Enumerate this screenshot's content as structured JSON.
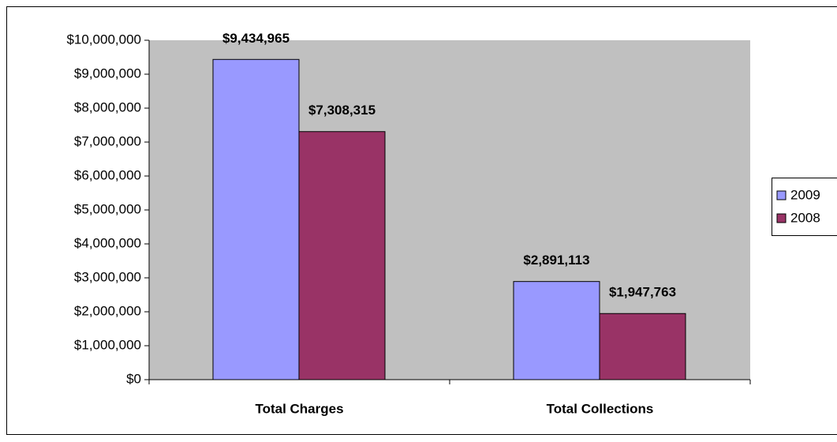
{
  "chart_data": {
    "type": "bar",
    "categories": [
      "Total Charges",
      "Total Collections"
    ],
    "series": [
      {
        "name": "2009",
        "color": "#9999ff",
        "values": [
          9434965,
          2891113
        ],
        "value_labels": [
          "$9,434,965",
          "$2,891,113"
        ]
      },
      {
        "name": "2008",
        "color": "#993366",
        "values": [
          7308315,
          1947763
        ],
        "value_labels": [
          "$7,308,315",
          "$1,947,763"
        ]
      }
    ],
    "ylim": [
      0,
      10000000
    ],
    "yticks": [
      {
        "value": 0,
        "label": "$0"
      },
      {
        "value": 1000000,
        "label": "$1,000,000"
      },
      {
        "value": 2000000,
        "label": "$2,000,000"
      },
      {
        "value": 3000000,
        "label": "$3,000,000"
      },
      {
        "value": 4000000,
        "label": "$4,000,000"
      },
      {
        "value": 5000000,
        "label": "$5,000,000"
      },
      {
        "value": 6000000,
        "label": "$6,000,000"
      },
      {
        "value": 7000000,
        "label": "$7,000,000"
      },
      {
        "value": 8000000,
        "label": "$8,000,000"
      },
      {
        "value": 9000000,
        "label": "$9,000,000"
      },
      {
        "value": 10000000,
        "label": "$10,000,000"
      }
    ],
    "legend": "right",
    "plot_background": "#c0c0c0"
  }
}
